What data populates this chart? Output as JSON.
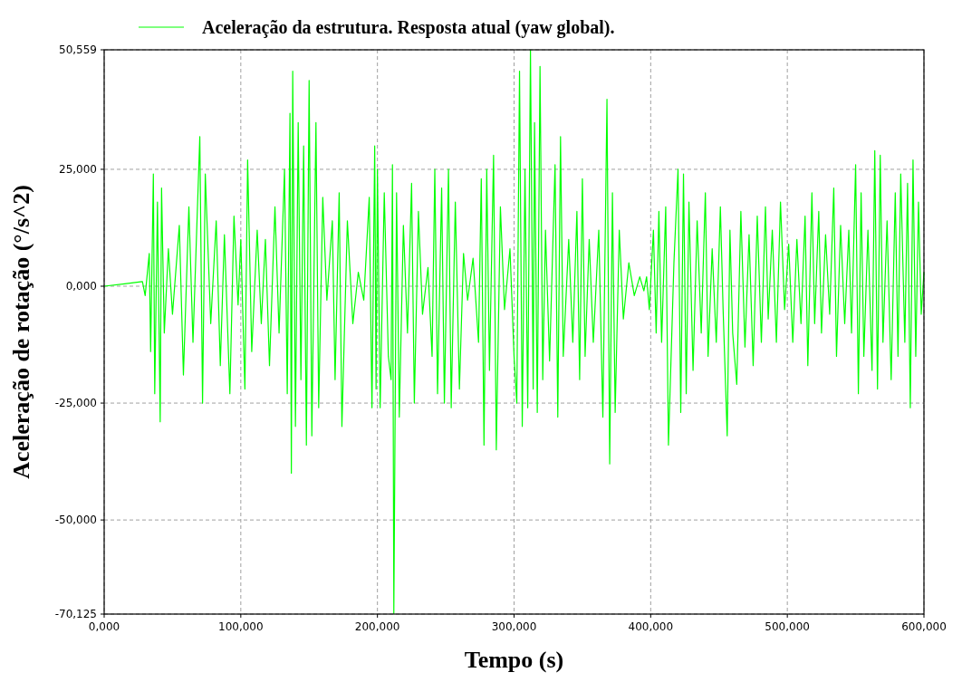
{
  "chart_data": {
    "type": "line",
    "xlabel": "Tempo (s)",
    "ylabel": "Aceleração de rotação (°/s^2)",
    "xlim": [
      0,
      600
    ],
    "ylim": [
      -70.125,
      50.559
    ],
    "xticks": [
      {
        "value": 0,
        "label": "0,000"
      },
      {
        "value": 100,
        "label": "100,000"
      },
      {
        "value": 200,
        "label": "200,000"
      },
      {
        "value": 300,
        "label": "300,000"
      },
      {
        "value": 400,
        "label": "400,000"
      },
      {
        "value": 500,
        "label": "500,000"
      },
      {
        "value": 600,
        "label": "600,000"
      }
    ],
    "yticks": [
      {
        "value": -70.125,
        "label": "-70,125"
      },
      {
        "value": -50,
        "label": "-50,000"
      },
      {
        "value": -25,
        "label": "-25,000"
      },
      {
        "value": 0,
        "label": "0,000"
      },
      {
        "value": 25,
        "label": "25,000"
      },
      {
        "value": 50.559,
        "label": "50,559"
      }
    ],
    "grid": true,
    "legend": "top",
    "line_style": "solid",
    "marker": "none",
    "series": [
      {
        "name": "Aceleração da estrutura. Resposta atual (yaw global).",
        "color": "#00ff00",
        "x": [
          0,
          15,
          28,
          30,
          33,
          34,
          36,
          37,
          39,
          41,
          42,
          44,
          47,
          50,
          55,
          58,
          62,
          65,
          70,
          72,
          74,
          78,
          82,
          85,
          88,
          92,
          95,
          98,
          100,
          103,
          105,
          108,
          112,
          115,
          118,
          121,
          125,
          128,
          132,
          134,
          136,
          137,
          138,
          140,
          142,
          144,
          146,
          148,
          150,
          152,
          155,
          157,
          160,
          163,
          167,
          169,
          172,
          174,
          178,
          182,
          186,
          190,
          194,
          196,
          198,
          199,
          200,
          202,
          205,
          208,
          210,
          211,
          212,
          214,
          216,
          219,
          222,
          225,
          227,
          230,
          233,
          237,
          240,
          242,
          244,
          247,
          249,
          252,
          254,
          257,
          260,
          263,
          266,
          270,
          274,
          276,
          278,
          280,
          282,
          285,
          287,
          290,
          293,
          297,
          300,
          302,
          304,
          306,
          308,
          310,
          312,
          314,
          315,
          317,
          319,
          321,
          323,
          326,
          330,
          332,
          334,
          336,
          340,
          343,
          346,
          348,
          350,
          352,
          355,
          358,
          362,
          365,
          368,
          370,
          372,
          374,
          377,
          380,
          384,
          388,
          392,
          395,
          397,
          399,
          402,
          404,
          406,
          408,
          411,
          413,
          417,
          420,
          422,
          424,
          426,
          428,
          431,
          434,
          437,
          440,
          442,
          445,
          448,
          451,
          453,
          456,
          458,
          460,
          463,
          466,
          469,
          472,
          475,
          478,
          481,
          484,
          486,
          489,
          492,
          495,
          498,
          501,
          504,
          507,
          510,
          513,
          515,
          518,
          520,
          523,
          525,
          528,
          531,
          534,
          536,
          539,
          542,
          545,
          547,
          550,
          552,
          554,
          556,
          559,
          562,
          564,
          566,
          568,
          570,
          573,
          576,
          579,
          581,
          583,
          586,
          588,
          590,
          592,
          594,
          596,
          598,
          600
        ],
        "values": [
          0,
          0.5,
          1,
          -2,
          7,
          -14,
          24,
          -23,
          18,
          -29,
          21,
          -10,
          8,
          -6,
          13,
          -19,
          17,
          -12,
          32,
          -25,
          24,
          -8,
          14,
          -17,
          11,
          -23,
          15,
          -4,
          10,
          -22,
          27,
          -14,
          12,
          -8,
          10,
          -17,
          17,
          -10,
          25,
          -23,
          37,
          -40,
          46,
          -30,
          35,
          -20,
          30,
          -34,
          44,
          -32,
          35,
          -26,
          19,
          -3,
          14,
          -20,
          20,
          -30,
          14,
          -8,
          3,
          -3,
          19,
          -26,
          30,
          -22,
          25,
          -26,
          20,
          -15,
          -20,
          26,
          -70,
          20,
          -28,
          13,
          -10,
          22,
          -25,
          16,
          -6,
          4,
          -15,
          25,
          -23,
          21,
          -25,
          25,
          -26,
          18,
          -22,
          7,
          -3,
          6,
          -12,
          23,
          -34,
          25,
          -18,
          28,
          -35,
          17,
          -5,
          8,
          -15,
          -25,
          46,
          -30,
          25,
          -26,
          50.5,
          -22,
          35,
          -27,
          47,
          -20,
          12,
          -16,
          26,
          -28,
          32,
          -15,
          10,
          -12,
          16,
          -20,
          23,
          -15,
          10,
          -12,
          12,
          -28,
          40,
          -38,
          20,
          -27,
          12,
          -7,
          5,
          -2,
          2,
          -1,
          2,
          -5,
          12,
          -10,
          16,
          -12,
          17,
          -34,
          5,
          25,
          -27,
          24,
          -23,
          18,
          -18,
          14,
          -10,
          20,
          -15,
          8,
          -12,
          17,
          -5,
          -32,
          12,
          -10,
          -21,
          16,
          -13,
          11,
          -17,
          15,
          -12,
          17,
          -7,
          12,
          -12,
          18,
          -5,
          9,
          -12,
          10,
          -8,
          15,
          -17,
          20,
          -8,
          16,
          -10,
          11,
          -6,
          21,
          -15,
          13,
          -8,
          12,
          -10,
          26,
          -23,
          20,
          -15,
          12,
          -18,
          29,
          -22,
          28,
          -12,
          14,
          -20,
          20,
          -15,
          24,
          -12,
          22,
          -26,
          27,
          -15,
          18,
          -6,
          3
        ]
      }
    ]
  }
}
